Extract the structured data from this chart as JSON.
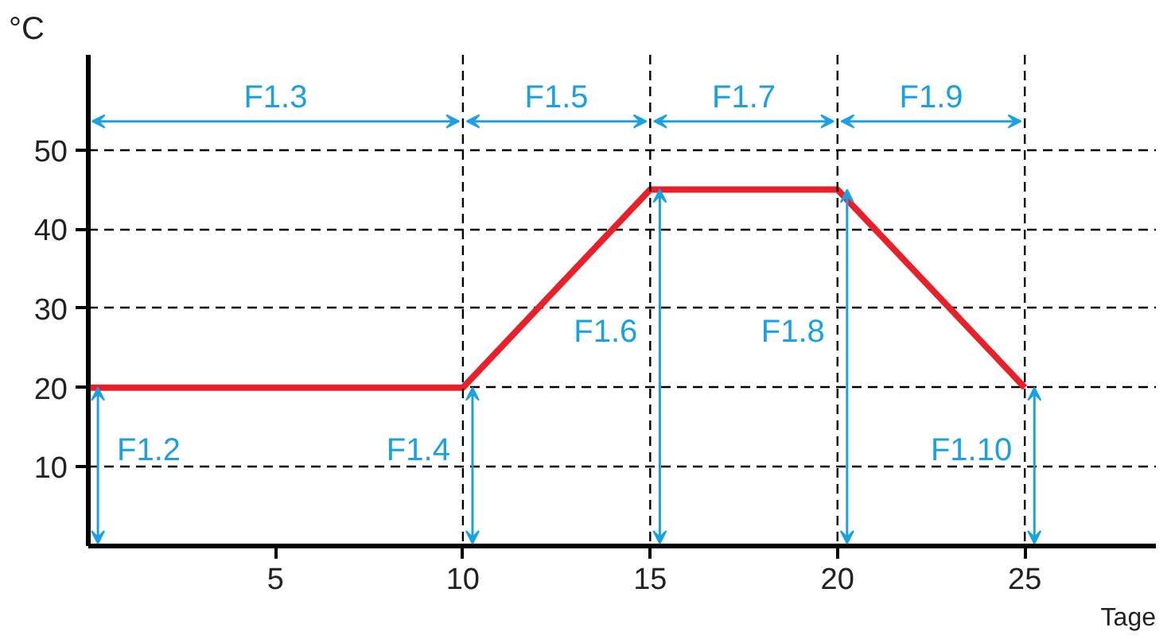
{
  "chart_data": {
    "type": "line",
    "xlabel": "Tage",
    "ylabel": "°C",
    "x": [
      0,
      10,
      15,
      20,
      25
    ],
    "series": [
      {
        "color": "#e8202a",
        "values": [
          20,
          20,
          45,
          45,
          20
        ]
      }
    ],
    "xlim": [
      0,
      28.5
    ],
    "ylim": [
      0,
      62
    ],
    "xticks": [
      5,
      10,
      15,
      20,
      25
    ],
    "yticks": [
      10,
      20,
      30,
      40,
      50
    ],
    "grid": "y",
    "marker": "none",
    "line_style": "solid",
    "ref_lines": [
      {
        "axis": "x",
        "value": 10,
        "label": null,
        "line_style": "dashed",
        "color": "#000000"
      },
      {
        "axis": "x",
        "value": 15,
        "label": null,
        "line_style": "dashed",
        "color": "#000000"
      },
      {
        "axis": "x",
        "value": 20,
        "label": null,
        "line_style": "dashed",
        "color": "#000000"
      },
      {
        "axis": "x",
        "value": 25,
        "label": null,
        "line_style": "dashed",
        "color": "#000000"
      }
    ],
    "annotations": [
      "F1.2",
      "F1.3",
      "F1.4",
      "F1.5",
      "F1.6",
      "F1.7",
      "F1.8",
      "F1.9",
      "F1.10"
    ]
  }
}
